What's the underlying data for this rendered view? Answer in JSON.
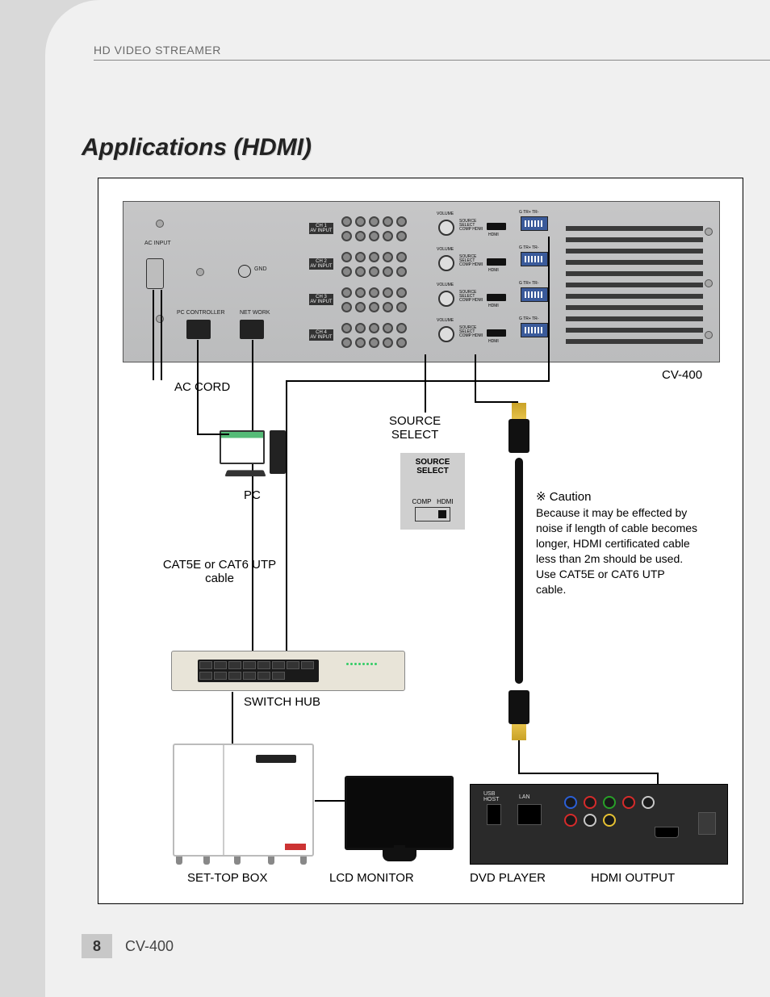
{
  "header": {
    "product": "HD VIDEO STREAMER"
  },
  "title": "Applications (HDMI)",
  "footer": {
    "page": "8",
    "model": "CV-400"
  },
  "labels": {
    "ac_cord": "AC CORD",
    "cv400": "CV-400",
    "pc": "PC",
    "source_select": "SOURCE\nSELECT",
    "cat_cable": "CAT5E or CAT6 UTP\ncable",
    "switch_hub": "SWITCH HUB",
    "set_top": "SET-TOP BOX",
    "lcd": "LCD MONITOR",
    "dvd": "DVD PLAYER",
    "hdmi_out": "HDMI OUTPUT"
  },
  "source_select_box": {
    "title": "SOURCE\nSELECT",
    "left": "COMP",
    "right": "HDMI"
  },
  "caution": {
    "header": "※ Caution",
    "body": "Because it may be effected by noise if length of cable becomes longer, HDMI certificated cable less than 2m should be used. Use CAT5E or CAT6 UTP cable."
  },
  "panel": {
    "ac_input": "AC INPUT",
    "gnd": "GND",
    "pc_ctrl": "PC CONTROLLER",
    "network": "NET WORK",
    "channels": [
      "CH 1\nAV INPUT",
      "CH 2\nAV INPUT",
      "CH 3\nAV INPUT",
      "CH 4\nAV INPUT"
    ],
    "volume": "VOLUME",
    "src_sel": "SOURCE\nSELECT\nCOMP HDMI",
    "hdmi": "HDMI",
    "utp": "G TR+ TR-"
  },
  "dvd": {
    "usb": "USB\nHOST",
    "lan": "LAN",
    "rca_colors": [
      "#2b5fd6",
      "#d62b2b",
      "#28a028",
      "#d62b2b",
      "#c8c8c8",
      "#d62b2b",
      "#c8c8c8",
      "#e6c132"
    ]
  },
  "style": {
    "page_bg": "#f0f0f0",
    "outer_bg": "#d9d9d9",
    "panel_bg": "#c0c0c1"
  }
}
